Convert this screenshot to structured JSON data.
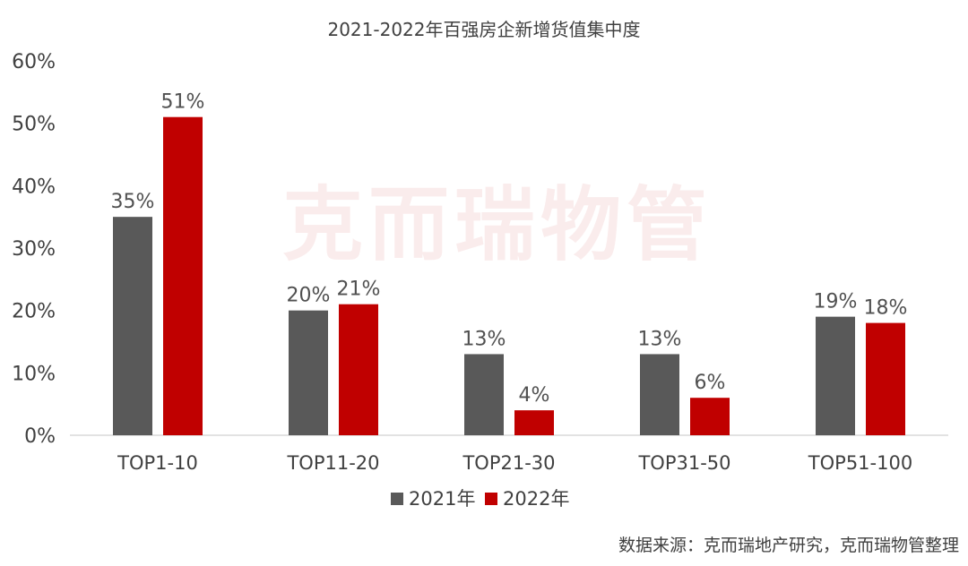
{
  "chart_data": {
    "type": "bar",
    "title": "2021-2022年百强房企新增货值集中度",
    "categories": [
      "TOP1-10",
      "TOP11-20",
      "TOP21-30",
      "TOP31-50",
      "TOP51-100"
    ],
    "series": [
      {
        "name": "2021年",
        "values": [
          35,
          20,
          13,
          13,
          19
        ],
        "labels": [
          "35%",
          "20%",
          "13%",
          "13%",
          "19%"
        ],
        "color": "#595959"
      },
      {
        "name": "2022年",
        "values": [
          51,
          21,
          4,
          6,
          18
        ],
        "labels": [
          "51%",
          "21%",
          "4%",
          "6%",
          "18%"
        ],
        "color": "#c00000"
      }
    ],
    "ylim": [
      0,
      60
    ],
    "yticks": [
      "0%",
      "10%",
      "20%",
      "30%",
      "40%",
      "50%",
      "60%"
    ],
    "grid": false,
    "legend": "bottom",
    "watermark": "克而瑞物管",
    "source": "数据来源：克而瑞地产研究，克而瑞物管整理"
  }
}
